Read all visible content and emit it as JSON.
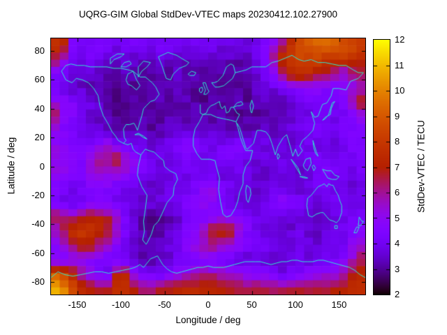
{
  "chart_data": {
    "type": "heatmap",
    "title": "UQRG-GIM Global StdDev-VTEC maps 20230412.102.27900",
    "xlabel": "Longitude / deg",
    "ylabel": "Latitude / deg",
    "colorbar_label": "StdDev-VTEC / TECU",
    "xlim": [
      -180,
      180
    ],
    "ylim": [
      -88.75,
      88.75
    ],
    "zlim": [
      2,
      12
    ],
    "x_ticks": [
      -150,
      -100,
      -50,
      0,
      50,
      100,
      150
    ],
    "y_ticks": [
      80,
      60,
      40,
      20,
      0,
      -20,
      -40,
      -60,
      -80
    ],
    "colorbar_ticks": [
      12,
      11,
      10,
      9,
      8,
      7,
      6,
      5,
      4,
      3,
      2
    ],
    "palette": "gnuplot-black-purple-magenta-red-orange-yellow",
    "legend_position": "right-colorbar",
    "grid_lines": "off",
    "overlay": "world-coastlines-cyan",
    "lon_centers": [
      -175,
      -165,
      -155,
      -145,
      -135,
      -125,
      -115,
      -105,
      -95,
      -85,
      -75,
      -65,
      -55,
      -45,
      -35,
      -25,
      -15,
      -5,
      5,
      15,
      25,
      35,
      45,
      55,
      65,
      75,
      85,
      95,
      105,
      115,
      125,
      135,
      145,
      155,
      165,
      175
    ],
    "lat_centers": [
      85,
      75,
      65,
      55,
      45,
      35,
      25,
      15,
      5,
      -5,
      -15,
      -25,
      -35,
      -45,
      -55,
      -65,
      -75,
      -85
    ],
    "values_tecu": [
      [
        8,
        7.5,
        4.6,
        4.3,
        4.2,
        4.3,
        4.2,
        4,
        4,
        4.2,
        4,
        4.2,
        4.3,
        4.2,
        4.2,
        4,
        4.2,
        4,
        4,
        3.8,
        3.8,
        3.6,
        3.8,
        4,
        4.5,
        5,
        6,
        7.5,
        8.5,
        9,
        9.3,
        9.3,
        9,
        8.8,
        8.5,
        8.2
      ],
      [
        6.5,
        5.5,
        4.2,
        4,
        4.2,
        4,
        3.8,
        3.6,
        3.8,
        3.5,
        3.5,
        3.6,
        3.8,
        3.5,
        3.6,
        3.5,
        3.4,
        3.4,
        3.5,
        3.4,
        3.4,
        3.2,
        3.5,
        3.8,
        4.5,
        6,
        7.5,
        8,
        8.5,
        8.5,
        8.5,
        8.2,
        8,
        8,
        7.8,
        7.5
      ],
      [
        4.5,
        4,
        3.6,
        3.5,
        3.6,
        3.4,
        3.2,
        3.2,
        3.4,
        3.2,
        3,
        3.2,
        3.4,
        3.2,
        3.4,
        3.2,
        3.2,
        3,
        3.2,
        3.2,
        3,
        3.2,
        3.4,
        3.6,
        4.2,
        5,
        6.5,
        7.5,
        7.8,
        7.5,
        7,
        6.5,
        6,
        5.5,
        6,
        6.5
      ],
      [
        4,
        3.8,
        3.5,
        3.4,
        3.2,
        3.4,
        3.2,
        3,
        3.2,
        3,
        3,
        3.2,
        3.4,
        3.2,
        3.4,
        3.4,
        3.2,
        3,
        3,
        3.2,
        3,
        3,
        3.2,
        3.4,
        3.5,
        3.8,
        4.2,
        4.5,
        5,
        5.2,
        5,
        4.8,
        4.6,
        4.8,
        5.2,
        5.5
      ],
      [
        5,
        4.8,
        4.5,
        4.2,
        3.8,
        3.5,
        3.2,
        3,
        3,
        3.2,
        3,
        3,
        3.2,
        3.2,
        3.4,
        3.2,
        3,
        3,
        3.2,
        3,
        3,
        3.2,
        3,
        3.2,
        3.4,
        3.2,
        3.4,
        3.6,
        3.8,
        4,
        4.2,
        4,
        4.2,
        4.5,
        5.5,
        7
      ],
      [
        6.5,
        5,
        4.5,
        4,
        3.6,
        3.4,
        3.2,
        3,
        3,
        3,
        3.2,
        3,
        3,
        3.2,
        3,
        3.2,
        3.4,
        3.2,
        3,
        3.2,
        3,
        3,
        3.2,
        3,
        3.2,
        3.4,
        3.2,
        3.4,
        3.6,
        3.8,
        4,
        4.2,
        4,
        4.2,
        4.5,
        5
      ],
      [
        4.8,
        4.5,
        4.2,
        4,
        3.8,
        3.6,
        3.4,
        3.2,
        3.2,
        3.4,
        3.2,
        3,
        3.2,
        3.4,
        3.6,
        3.4,
        3.2,
        3.4,
        3.6,
        3.4,
        3.2,
        3.4,
        3.2,
        3.4,
        3.6,
        3.4,
        3.6,
        3.8,
        4,
        4.2,
        4.4,
        4.2,
        4,
        4.2,
        4.4,
        4.6
      ],
      [
        5,
        4.8,
        4.6,
        4.4,
        4.5,
        5,
        5.2,
        4.5,
        4.2,
        4,
        3.8,
        3.6,
        3.8,
        4,
        4.5,
        4.8,
        4.6,
        4.2,
        3.8,
        4,
        4.4,
        4.6,
        4.4,
        4,
        3.8,
        3.6,
        3.8,
        3.6,
        3.8,
        4,
        3.8,
        3.6,
        3.8,
        4,
        4.2,
        4.5
      ],
      [
        5.2,
        5,
        4.8,
        4.6,
        5.5,
        6,
        6.2,
        7,
        5.8,
        5,
        4.5,
        4,
        3.8,
        4,
        4.2,
        4.4,
        4.2,
        4,
        4.2,
        4.4,
        4.2,
        4,
        3.8,
        3.6,
        3.8,
        4,
        3.8,
        3.6,
        3.8,
        4,
        4.2,
        4,
        3.8,
        4,
        4.2,
        4.4
      ],
      [
        5,
        4.8,
        4.6,
        4.5,
        5,
        5.5,
        5.5,
        5.2,
        5,
        4.6,
        4.2,
        4,
        3.8,
        3.6,
        3.8,
        4,
        4.2,
        4,
        3.8,
        3.6,
        3.8,
        4,
        3.8,
        3.6,
        3.5,
        3.6,
        3.8,
        3.6,
        3.5,
        3.8,
        4.2,
        4.4,
        4.2,
        4,
        3.8,
        4
      ],
      [
        4.5,
        4.2,
        4,
        4.2,
        4.5,
        4.8,
        4.5,
        4.2,
        4,
        3.8,
        3.6,
        3.5,
        3.6,
        3.8,
        4,
        3.8,
        4.2,
        4.8,
        5,
        4.5,
        4,
        3.8,
        3.6,
        3.5,
        3.6,
        3.8,
        3.6,
        3.5,
        3.6,
        3.8,
        4,
        4.2,
        4,
        3.8,
        3.6,
        3.8
      ],
      [
        4.2,
        4,
        3.8,
        4,
        4.2,
        4.4,
        4.2,
        4,
        3.8,
        3.6,
        3.5,
        3.6,
        3.8,
        4,
        4.2,
        4.4,
        4.8,
        5,
        4.8,
        4.2,
        3.8,
        3.6,
        3.5,
        3.6,
        3.8,
        4.5,
        5,
        4.8,
        4.2,
        3.8,
        3.6,
        3.8,
        4,
        4.2,
        4,
        3.8
      ],
      [
        6.5,
        6.5,
        6,
        6.5,
        7,
        7,
        6.5,
        5.5,
        4.5,
        3.8,
        3.2,
        3,
        3,
        3.2,
        3.5,
        4,
        4.2,
        4.5,
        4.8,
        5,
        4.8,
        4.5,
        4.2,
        4,
        3.8,
        3.6,
        3.5,
        3.6,
        3.8,
        3.6,
        3.5,
        3.6,
        3.8,
        4,
        4.2,
        4.4
      ],
      [
        5.5,
        6.5,
        7.5,
        8,
        8,
        7.5,
        7,
        5.5,
        4.2,
        3.5,
        3.2,
        3,
        3.2,
        3.5,
        4,
        4.5,
        5,
        5.5,
        6.8,
        7,
        6.8,
        5.5,
        4.5,
        4,
        3.8,
        3.6,
        3.5,
        3.6,
        3.8,
        3.6,
        3.5,
        3.6,
        3.8,
        4,
        4.2,
        4.5
      ],
      [
        4.8,
        5.5,
        6.5,
        7,
        6.8,
        6,
        5.5,
        4.8,
        4.2,
        3.8,
        3.5,
        3.4,
        3.5,
        3.8,
        4.2,
        4.8,
        5.2,
        5.8,
        6,
        5.8,
        5.2,
        4.8,
        4.4,
        4.2,
        4,
        3.8,
        3.6,
        3.8,
        4,
        3.8,
        3.6,
        3.8,
        4,
        4.2,
        5,
        5.5
      ],
      [
        4.5,
        4.5,
        4.8,
        5,
        4.8,
        4.5,
        4.2,
        4,
        3.8,
        3.5,
        3.2,
        3,
        3.2,
        3.4,
        3.8,
        4,
        4.2,
        4.4,
        4.2,
        4,
        3.8,
        3.6,
        3.5,
        3.6,
        3.8,
        3.6,
        3.5,
        3.6,
        3.8,
        3.6,
        3.8,
        4,
        4.2,
        4.5,
        5.5,
        6.5
      ],
      [
        9,
        8.5,
        7.5,
        6,
        5,
        4.5,
        4.2,
        7,
        7.5,
        5,
        4.2,
        4,
        4.2,
        4.5,
        5,
        5.5,
        5.8,
        6,
        6,
        5.8,
        5.5,
        5.2,
        5,
        4.8,
        4.5,
        4.2,
        4,
        4.2,
        4.5,
        4.8,
        5,
        5.2,
        5.5,
        6,
        7,
        7.5
      ],
      [
        11,
        10,
        8.5,
        7.5,
        7,
        6.8,
        7,
        7.5,
        7.5,
        6.8,
        6.5,
        6.5,
        6.8,
        7,
        7.2,
        7.5,
        7.5,
        7.5,
        7.5,
        7.2,
        7,
        6.8,
        6.5,
        6.5,
        6.8,
        6.5,
        6.5,
        6.8,
        7,
        6.8,
        6.5,
        6.8,
        7,
        7.2,
        7.5,
        7.5
      ]
    ]
  },
  "colors": {
    "coastline": "#2ee8d2",
    "plot_border": "#000000",
    "background": "#ffffff",
    "text": "#000000"
  }
}
